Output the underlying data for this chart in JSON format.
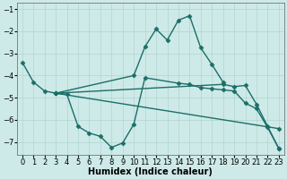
{
  "title": "",
  "xlabel": "Humidex (Indice chaleur)",
  "ylabel": "",
  "xlim": [
    -0.5,
    23.5
  ],
  "ylim": [
    -7.6,
    -0.7
  ],
  "yticks": [
    -1,
    -2,
    -3,
    -4,
    -5,
    -6,
    -7
  ],
  "xticks": [
    0,
    1,
    2,
    3,
    4,
    5,
    6,
    7,
    8,
    9,
    10,
    11,
    12,
    13,
    14,
    15,
    16,
    17,
    18,
    19,
    20,
    21,
    22,
    23
  ],
  "bg_color": "#ceeae8",
  "line_color": "#1a6e68",
  "grid_color": "#b0d4d0",
  "lines": [
    {
      "x": [
        0,
        1,
        2,
        3,
        10,
        11,
        12,
        13,
        14,
        15,
        16,
        17,
        18
      ],
      "y": [
        -3.4,
        -4.3,
        -4.7,
        -4.8,
        -4.0,
        -2.7,
        -1.9,
        -2.4,
        -1.5,
        -1.3,
        -2.75,
        -3.5,
        -4.3
      ]
    },
    {
      "x": [
        3,
        23
      ],
      "y": [
        -4.8,
        -6.4
      ]
    },
    {
      "x": [
        3,
        18,
        19,
        20,
        21,
        22,
        23
      ],
      "y": [
        -4.8,
        -4.4,
        -4.5,
        -4.45,
        -5.3,
        -6.3,
        -7.3
      ]
    },
    {
      "x": [
        3,
        4,
        5,
        6,
        7,
        8,
        9,
        10,
        11,
        14,
        15,
        16,
        17,
        18,
        19,
        20,
        21,
        22,
        23
      ],
      "y": [
        -4.8,
        -4.85,
        -6.3,
        -6.6,
        -6.75,
        -7.25,
        -7.05,
        -6.2,
        -4.1,
        -4.35,
        -4.4,
        -4.55,
        -4.6,
        -4.65,
        -4.7,
        -5.25,
        -5.5,
        -6.35,
        -7.3
      ]
    }
  ],
  "marker": "D",
  "marker_size": 2.5,
  "line_width": 1.0,
  "font_size_label": 7,
  "font_size_tick": 6
}
